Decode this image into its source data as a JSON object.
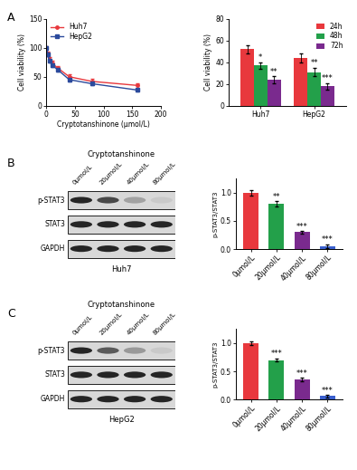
{
  "panels": [
    "A",
    "B",
    "C"
  ],
  "chart_data": [
    {
      "type": "line",
      "x_label": "Cryptotanshinone (μmol/L)",
      "y_label": "Cell viability (%)",
      "x": [
        0,
        2.5,
        5,
        10,
        20,
        40,
        80,
        160
      ],
      "series": [
        {
          "name": "Huh7",
          "color": "#e8383d",
          "marker": "o",
          "values": [
            100,
            90,
            80,
            73,
            65,
            50,
            42,
            35
          ],
          "errors": [
            3,
            4,
            4,
            4,
            4,
            4,
            4,
            4
          ]
        },
        {
          "name": "HepG2",
          "color": "#2b4a9c",
          "marker": "s",
          "values": [
            100,
            88,
            77,
            70,
            62,
            45,
            38,
            27
          ],
          "errors": [
            3,
            3,
            3,
            3,
            3,
            3,
            3,
            3
          ]
        }
      ],
      "xlim": [
        0,
        200
      ],
      "xticks": [
        0,
        50,
        100,
        150,
        200
      ],
      "ylim": [
        0,
        150
      ],
      "yticks": [
        0,
        50,
        100,
        150
      ],
      "legend": "upper left"
    },
    {
      "type": "bar",
      "y_label": "Cell viability (%)",
      "categories": [
        "Huh7",
        "HepG2"
      ],
      "series": [
        {
          "name": "24h",
          "color": "#e8383d",
          "values": [
            52,
            44
          ],
          "errors": [
            4,
            4
          ]
        },
        {
          "name": "48h",
          "color": "#23a04a",
          "values": [
            37,
            31
          ],
          "errors": [
            3,
            4
          ],
          "significance": [
            "*",
            "**"
          ]
        },
        {
          "name": "72h",
          "color": "#7a2a8e",
          "values": [
            24,
            18
          ],
          "errors": [
            3,
            3
          ],
          "significance": [
            "**",
            "***"
          ]
        }
      ],
      "ylim": [
        0,
        80
      ],
      "yticks": [
        0,
        20,
        40,
        60,
        80
      ],
      "legend": "upper right"
    },
    {
      "type": "bar",
      "y_label": "p-STAT3/STAT3",
      "categories": [
        "0μmol/L",
        "20μmol/L",
        "40μmol/L",
        "80μmol/L"
      ],
      "values": [
        1.0,
        0.8,
        0.3,
        0.05
      ],
      "errors": [
        0.05,
        0.05,
        0.02,
        0.03
      ],
      "significance": [
        null,
        "**",
        "***",
        "***"
      ],
      "colors": [
        "#e8383d",
        "#23a04a",
        "#7a2a8e",
        "#3a5fcd"
      ],
      "ylim": [
        0,
        1.25
      ],
      "yticks": [
        {
          "value": 0,
          "label": "0.0"
        },
        {
          "value": 0.5,
          "label": "0.5"
        },
        {
          "value": 1.0,
          "label": "1.0"
        }
      ]
    },
    {
      "type": "bar",
      "y_label": "p-STAT3/STAT3",
      "categories": [
        "0μmol/L",
        "20μmol/L",
        "40μmol/L",
        "80μmol/L"
      ],
      "values": [
        1.0,
        0.7,
        0.35,
        0.06
      ],
      "errors": [
        0.03,
        0.03,
        0.03,
        0.02
      ],
      "significance": [
        null,
        "***",
        "***",
        "***"
      ],
      "colors": [
        "#e8383d",
        "#23a04a",
        "#7a2a8e",
        "#3a5fcd"
      ],
      "ylim": [
        0,
        1.25
      ],
      "yticks": [
        {
          "value": 0,
          "label": "0.0"
        },
        {
          "value": 0.5,
          "label": "0.5"
        },
        {
          "value": 1.0,
          "label": "1.0"
        }
      ]
    }
  ],
  "blots": [
    {
      "title": "Cryptotanshinone",
      "lanes": [
        "0μmol/L",
        "20μmol/L",
        "40μmol/L",
        "80μmol/L"
      ],
      "rows": [
        "p-STAT3",
        "STAT3",
        "GAPDH"
      ],
      "caption": "Huh7"
    },
    {
      "title": "Cryptotanshinone",
      "lanes": [
        "0μmol/L",
        "20μmol/L",
        "40μmol/L",
        "80μmol/L"
      ],
      "rows": [
        "p-STAT3",
        "STAT3",
        "GAPDH"
      ],
      "caption": "HepG2"
    }
  ]
}
